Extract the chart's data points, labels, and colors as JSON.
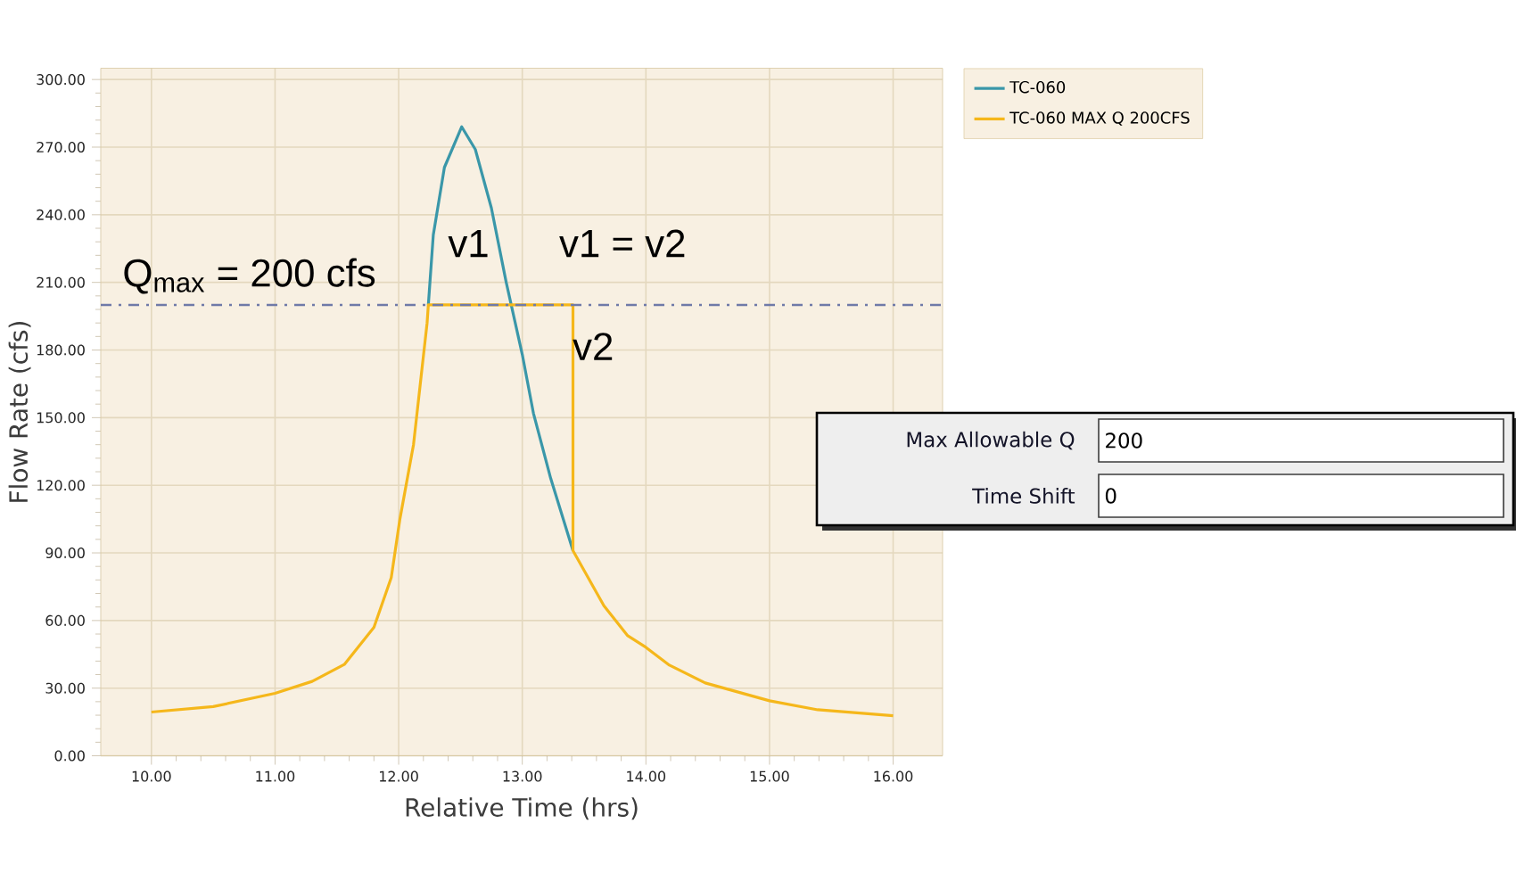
{
  "chart_data": [
    {
      "type": "line",
      "xlabel": "Relative Time (hrs)",
      "ylabel": "Flow Rate (cfs)",
      "xlim": [
        9.59,
        16.4
      ],
      "ylim": [
        0,
        305
      ],
      "xticks": [
        {
          "value": 10,
          "label": "10.00"
        },
        {
          "value": 11,
          "label": "11.00"
        },
        {
          "value": 12,
          "label": "12.00"
        },
        {
          "value": 13,
          "label": "13.00"
        },
        {
          "value": 14,
          "label": "14.00"
        },
        {
          "value": 15,
          "label": "15.00"
        },
        {
          "value": 16,
          "label": "16.00"
        }
      ],
      "yticks": [
        {
          "value": 0,
          "label": "0.00"
        },
        {
          "value": 30,
          "label": "30.00"
        },
        {
          "value": 60,
          "label": "60.00"
        },
        {
          "value": 90,
          "label": "90.00"
        },
        {
          "value": 120,
          "label": "120.00"
        },
        {
          "value": 150,
          "label": "150.00"
        },
        {
          "value": 180,
          "label": "180.00"
        },
        {
          "value": 210,
          "label": "210.00"
        },
        {
          "value": 240,
          "label": "240.00"
        },
        {
          "value": 270,
          "label": "270.00"
        },
        {
          "value": 300,
          "label": "300.00"
        }
      ],
      "grid": true,
      "legend": "top right",
      "marker": "none",
      "line_style": "solid",
      "series": [
        {
          "name": "TC-060",
          "color": "#3a97a9",
          "x": [
            12.24,
            12.28,
            12.37,
            12.51,
            12.62,
            12.75,
            12.87,
            13.0,
            13.09,
            13.23,
            13.41
          ],
          "values": [
            200,
            231,
            261,
            279,
            269,
            243,
            210,
            178,
            152,
            123,
            91
          ]
        },
        {
          "name": "TC-060 MAX Q 200CFS",
          "color": "#f5b71b",
          "x": [
            10,
            10.5,
            11,
            11.3,
            11.56,
            11.8,
            11.94,
            12.01,
            12.12,
            12.23,
            12.24,
            13.41,
            13.41,
            13.66,
            13.85,
            14.0,
            14.19,
            14.48,
            15.0,
            15.39,
            16.0
          ],
          "values": [
            19.4,
            21.8,
            27.7,
            33,
            40.5,
            57,
            79,
            105,
            138,
            192,
            200,
            200,
            91,
            66.6,
            53.4,
            48.1,
            40.2,
            32.3,
            24.4,
            20.4,
            17.8
          ]
        }
      ],
      "ref_lines": [
        {
          "axis": "y",
          "value": 200,
          "label": "Q$_{max}$ = 200 cfs",
          "color": "#6f7aa8",
          "line_style": "dashdotted"
        }
      ],
      "annotations": [
        "v1",
        "v2",
        "v1 = v2"
      ]
    },
    {
      "type": "other",
      "annotations": [
        "Max Allowable Q",
        "200",
        "Time Shift",
        "0"
      ]
    }
  ]
}
